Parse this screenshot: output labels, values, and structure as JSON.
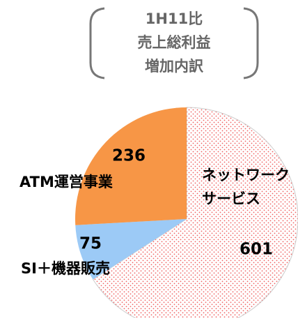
{
  "chart_data": {
    "type": "pie",
    "title": [
      "1H11比",
      "売上総利益",
      "増加内訳"
    ],
    "categories": [
      "ネットワーク\nサービス",
      "SI＋機器販売",
      "ATM運営事業"
    ],
    "values": [
      601,
      75,
      236
    ],
    "colors": [
      "#f06060",
      "#9ccaf6",
      "#f79646"
    ],
    "dotted": [
      true,
      false,
      false
    ]
  }
}
